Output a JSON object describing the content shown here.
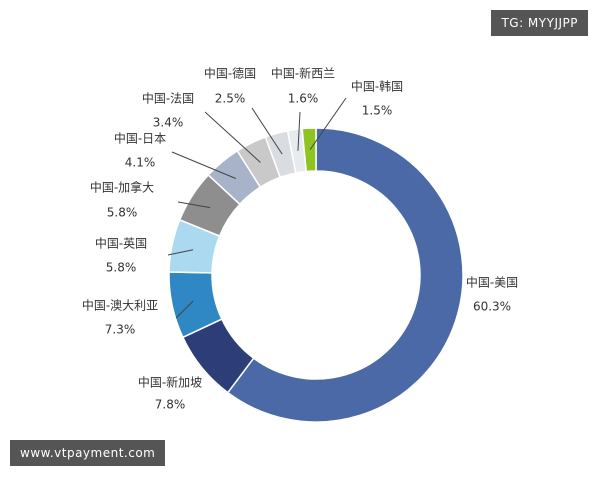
{
  "chart_data": {
    "type": "donut",
    "categories": [
      "中国-美国",
      "中国-新加坡",
      "中国-澳大利亚",
      "中国-英国",
      "中国-加拿大",
      "中国-日本",
      "中国-法国",
      "中国-德国",
      "中国-新西兰",
      "中国-韩国"
    ],
    "values": [
      60.3,
      7.8,
      7.3,
      5.8,
      5.8,
      4.1,
      3.4,
      2.5,
      1.6,
      1.5
    ],
    "value_labels": [
      "60.3%",
      "7.8%",
      "7.3%",
      "5.8%",
      "5.8%",
      "4.1%",
      "3.4%",
      "2.5%",
      "1.6%",
      "1.5%"
    ],
    "colors": [
      "#4a69a6",
      "#2d3d78",
      "#2f88c4",
      "#abd9ef",
      "#8e8e8e",
      "#a8b2c8",
      "#c9c9c9",
      "#d9dde2",
      "#e7eaee",
      "#8fc31f"
    ]
  },
  "watermarks": {
    "top": "TG: MYYJJPP",
    "bottom": "www.vtpayment.com"
  }
}
